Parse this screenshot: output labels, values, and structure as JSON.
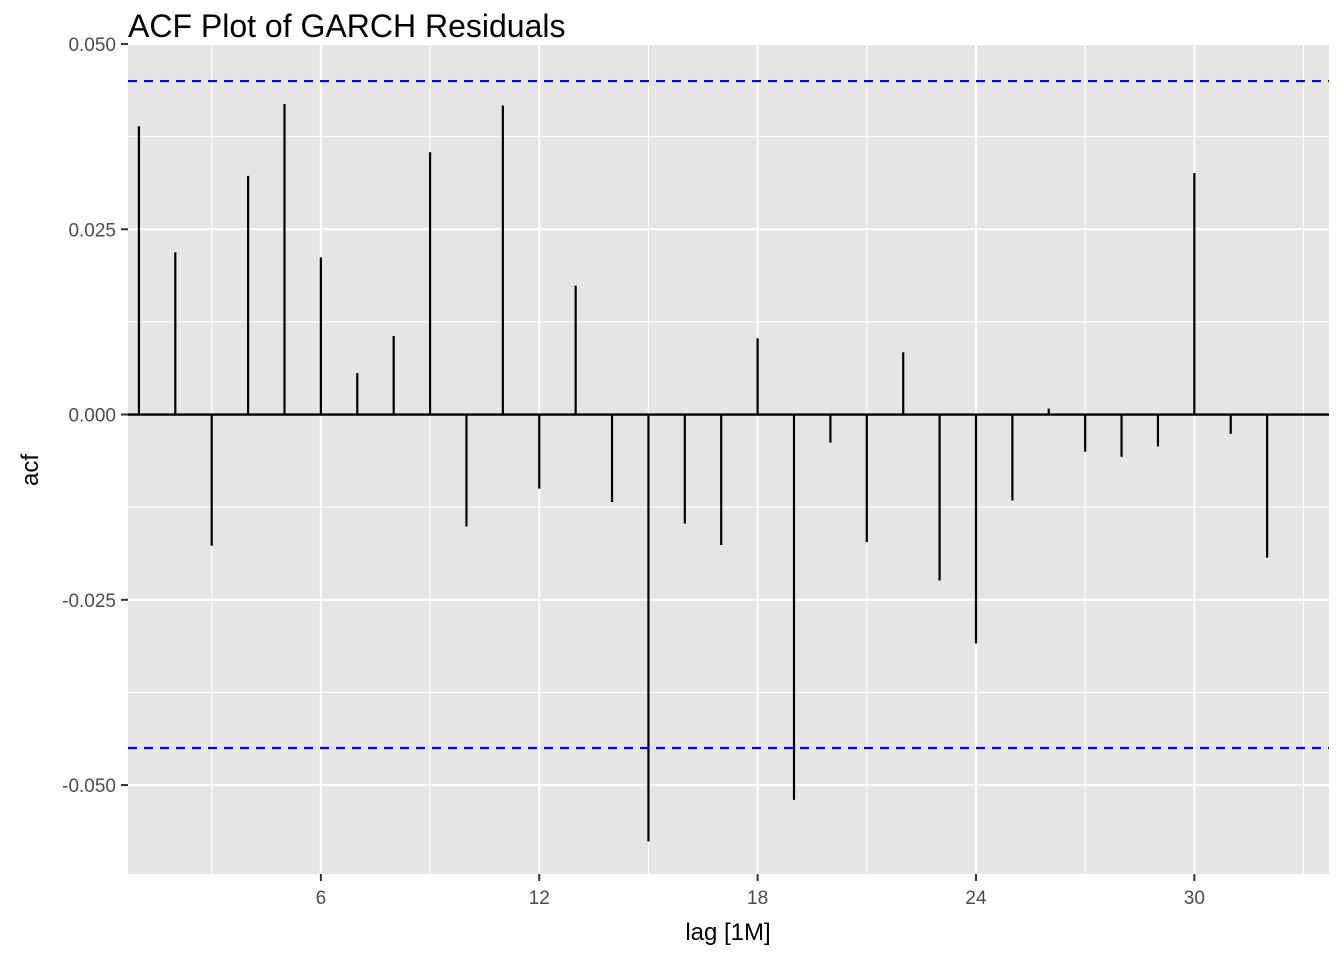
{
  "chart_data": {
    "type": "bar",
    "title": "ACF Plot of GARCH Residuals",
    "xlabel": "lag [1M]",
    "ylabel": "acf",
    "xlim": [
      0.7,
      33.7
    ],
    "ylim": [
      -0.062,
      0.05
    ],
    "x_ticks": [
      6,
      12,
      18,
      24,
      30
    ],
    "y_ticks": [
      -0.05,
      -0.025,
      0,
      0.025,
      0.05
    ],
    "y_tick_labels": [
      "-0.050",
      "-0.025",
      "0.000",
      "0.025",
      "0.050"
    ],
    "confidence_limit": 0.045,
    "grid": true,
    "colors": {
      "panel": "#e5e5e5",
      "grid": "#ffffff",
      "bars": "#000000",
      "confidence_lines": "#0000ff"
    },
    "lags": [
      1,
      2,
      3,
      4,
      5,
      6,
      7,
      8,
      9,
      10,
      11,
      12,
      13,
      14,
      15,
      16,
      17,
      18,
      19,
      20,
      21,
      22,
      23,
      24,
      25,
      26,
      27,
      28,
      29,
      30,
      31,
      32
    ],
    "values": [
      0.0389,
      0.0219,
      -0.0177,
      0.0322,
      0.0419,
      0.0212,
      0.0056,
      0.0106,
      0.0354,
      -0.0151,
      0.0417,
      -0.01,
      0.0174,
      -0.0118,
      -0.0576,
      -0.0147,
      -0.0176,
      0.0103,
      -0.052,
      -0.0038,
      -0.0172,
      0.0084,
      -0.0224,
      -0.0309,
      -0.0116,
      0.0008,
      -0.005,
      -0.0057,
      -0.0043,
      0.0326,
      -0.0026,
      -0.0193
    ]
  }
}
